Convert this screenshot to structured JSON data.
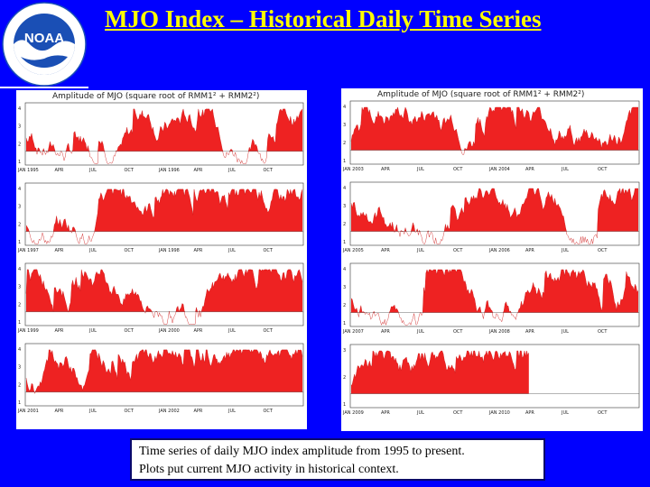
{
  "title": "MJO Index – Historical Daily Time Series",
  "logo": {
    "text": "NOAA",
    "ring_text": "NATIONAL OCEANIC AND ATMOSPHERIC ADMINISTRATION · U.S. DEPARTMENT OF COMMERCE"
  },
  "panels": [
    {
      "title": "Amplitude of MJO (square root of RMM1² + RMM2²)",
      "rows": [
        {
          "year_labels": [
            "JAN 1995",
            "JAN 1996"
          ],
          "yticks": [
            "4",
            "3",
            "2",
            "1"
          ]
        },
        {
          "year_labels": [
            "JAN 1997",
            "JAN 1998"
          ],
          "yticks": [
            "4",
            "3",
            "2",
            "1"
          ]
        },
        {
          "year_labels": [
            "JAN 1999",
            "JAN 2000"
          ],
          "yticks": [
            "4",
            "3",
            "2",
            "1"
          ]
        },
        {
          "year_labels": [
            "JAN 2001",
            "JAN 2002"
          ],
          "yticks": [
            "4",
            "3",
            "2",
            "1"
          ]
        }
      ]
    },
    {
      "title": "Amplitude of MJO (square root of RMM1² + RMM2²)",
      "rows": [
        {
          "year_labels": [
            "JAN 2003",
            "JAN 2004"
          ],
          "yticks": [
            "4",
            "3",
            "2",
            "1"
          ]
        },
        {
          "year_labels": [
            "JAN 2005",
            "JAN 2006"
          ],
          "yticks": [
            "4",
            "3",
            "2",
            "1"
          ]
        },
        {
          "year_labels": [
            "JAN 2007",
            "JAN 2008"
          ],
          "yticks": [
            "4",
            "3",
            "2",
            "1"
          ]
        },
        {
          "year_labels": [
            "JAN 2009",
            "JAN 2010"
          ],
          "yticks": [
            "3",
            "2",
            "1"
          ]
        }
      ]
    }
  ],
  "month_labels": [
    "APR",
    "JUL",
    "OCT",
    "JAN",
    "APR",
    "JUL",
    "OCT"
  ],
  "colors": {
    "fill": "#ee2222",
    "line": "#cc1111",
    "background": "#0000ff",
    "title": "#ffff00"
  },
  "caption": {
    "line1": "Time series of daily MJO index amplitude from 1995 to present.",
    "line2": "Plots put current MJO activity in historical context."
  }
}
